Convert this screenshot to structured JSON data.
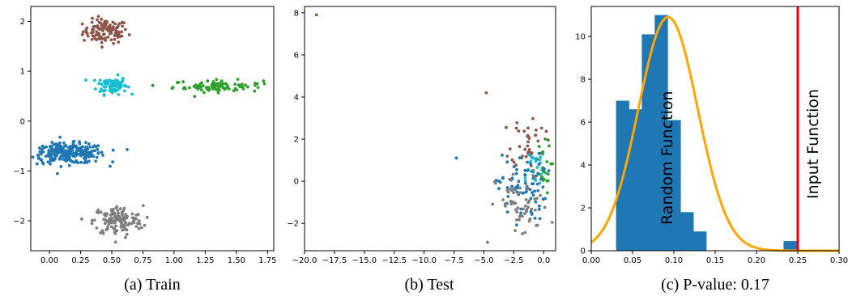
{
  "colors": {
    "brown": "#8c564b",
    "cyan": "#17becf",
    "green": "#2ca02c",
    "blue": "#1f77b4",
    "gray": "#7f7f7f",
    "orange": "#ffa500",
    "red": "#e8000b",
    "hist": "#1f77b4"
  },
  "chart_data": [
    {
      "type": "scatter",
      "caption": "(a) Train",
      "xlim": [
        -0.15,
        1.8
      ],
      "ylim": [
        -2.6,
        2.3
      ],
      "xticks": [
        "0.00",
        "0.25",
        "0.50",
        "0.75",
        "1.00",
        "1.25",
        "1.50",
        "1.75"
      ],
      "xtick_values": [
        0,
        0.25,
        0.5,
        0.75,
        1.0,
        1.25,
        1.5,
        1.75
      ],
      "yticks": [
        "−2",
        "−1",
        "0",
        "1",
        "2"
      ],
      "ytick_values": [
        -2,
        -1,
        0,
        1,
        2
      ],
      "clusters": [
        {
          "color": "brown",
          "cx": 0.45,
          "cy": 1.8,
          "sx": 0.09,
          "sy": 0.12,
          "n": 110
        },
        {
          "color": "cyan",
          "cx": 0.5,
          "cy": 0.72,
          "sx": 0.06,
          "sy": 0.09,
          "n": 90
        },
        {
          "color": "green",
          "cx": 1.35,
          "cy": 0.7,
          "sx": 0.18,
          "sy": 0.06,
          "n": 85
        },
        {
          "color": "blue",
          "cx": 0.15,
          "cy": -0.65,
          "sx": 0.15,
          "sy": 0.1,
          "n": 260
        },
        {
          "color": "gray",
          "cx": 0.55,
          "cy": -2.0,
          "sx": 0.1,
          "sy": 0.15,
          "n": 140
        }
      ]
    },
    {
      "type": "scatter",
      "caption": "(b) Test",
      "xlim": [
        -20.0,
        1.0
      ],
      "ylim": [
        -3.3,
        8.3
      ],
      "xticks": [
        "−20.0",
        "−17.5",
        "−15.0",
        "−12.5",
        "−10.0",
        "−7.5",
        "−5.0",
        "−2.5",
        "0.0"
      ],
      "xtick_values": [
        -20,
        -17.5,
        -15,
        -12.5,
        -10,
        -7.5,
        -5,
        -2.5,
        0
      ],
      "yticks": [
        "−2",
        "0",
        "2",
        "4",
        "6",
        "8"
      ],
      "ytick_values": [
        -2,
        0,
        2,
        4,
        6,
        8
      ],
      "outliers": [
        {
          "x": -19.0,
          "y": 7.9,
          "color": "brown"
        },
        {
          "x": -4.8,
          "y": 4.2,
          "color": "brown"
        },
        {
          "x": -7.3,
          "y": 1.1,
          "color": "blue"
        },
        {
          "x": -4.7,
          "y": -2.9,
          "color": "gray"
        }
      ],
      "clusters": [
        {
          "color": "brown",
          "cx": -1.3,
          "cy": 1.9,
          "sx": 0.7,
          "sy": 0.6,
          "n": 40
        },
        {
          "color": "cyan",
          "cx": -0.9,
          "cy": 0.6,
          "sx": 0.6,
          "sy": 0.5,
          "n": 25
        },
        {
          "color": "green",
          "cx": -0.1,
          "cy": 0.6,
          "sx": 0.35,
          "sy": 0.6,
          "n": 20
        },
        {
          "color": "blue",
          "cx": -1.8,
          "cy": -0.3,
          "sx": 1.0,
          "sy": 0.8,
          "n": 70
        },
        {
          "color": "gray",
          "cx": -1.8,
          "cy": -1.2,
          "sx": 1.1,
          "sy": 0.8,
          "n": 60
        }
      ]
    },
    {
      "type": "bar",
      "caption": "(c) P-value: 0.17",
      "xlim": [
        0.0,
        0.3
      ],
      "ylim": [
        0,
        11.4
      ],
      "xticks": [
        "0.00",
        "0.05",
        "0.10",
        "0.15",
        "0.20",
        "0.25",
        "0.30"
      ],
      "xtick_values": [
        0,
        0.05,
        0.1,
        0.15,
        0.2,
        0.25,
        0.3
      ],
      "yticks": [
        "0",
        "2",
        "4",
        "6",
        "8",
        "10"
      ],
      "ytick_values": [
        0,
        2,
        4,
        6,
        8,
        10
      ],
      "bins": [
        0.03,
        0.0456,
        0.0612,
        0.0768,
        0.0924,
        0.108,
        0.1236,
        0.1392,
        0.1548,
        0.1704,
        0.186,
        0.2016,
        0.2172,
        0.2328,
        0.2484
      ],
      "heights": [
        7.0,
        6.6,
        10.1,
        11.0,
        6.1,
        1.8,
        0.9,
        0,
        0,
        0,
        0,
        0,
        0,
        0.45
      ],
      "curve": {
        "mean": 0.093,
        "sd": 0.036,
        "peak": 10.9
      },
      "vline": 0.25,
      "label_random": "Random Function",
      "label_input": "Input Function"
    }
  ]
}
